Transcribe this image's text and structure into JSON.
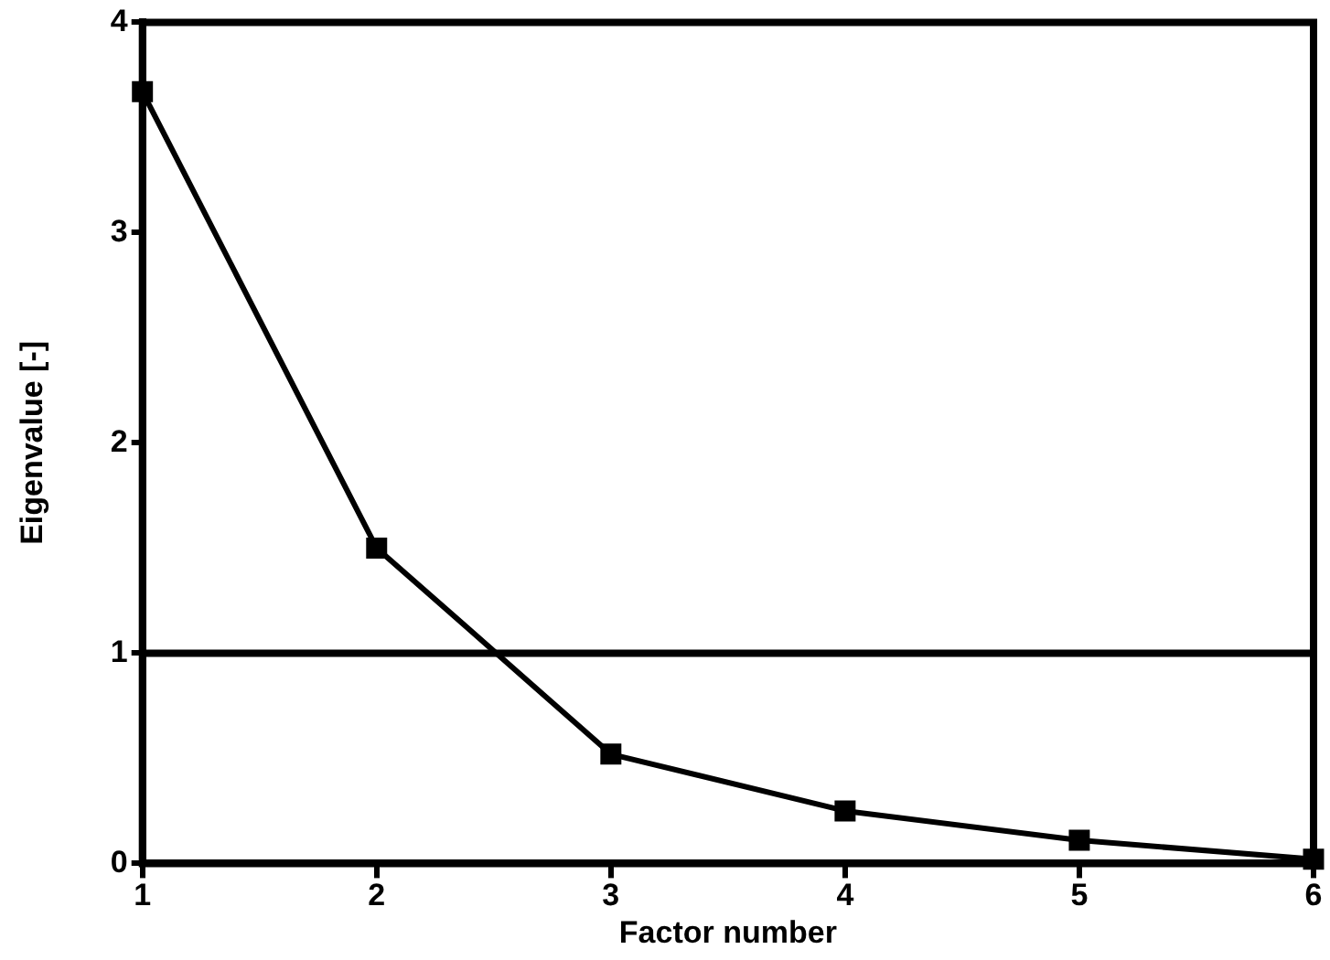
{
  "chart_data": {
    "type": "line",
    "xlabel": "Factor number",
    "ylabel": "Eigenvalue [-]",
    "x": [
      1,
      2,
      3,
      4,
      5,
      6
    ],
    "series": [
      {
        "color": "#000000",
        "values": [
          3.67,
          1.5,
          0.52,
          0.25,
          0.11,
          0.02
        ]
      }
    ],
    "xlim": [
      1,
      6
    ],
    "xticks": [
      1,
      2,
      3,
      4,
      5,
      6
    ],
    "ylim": [
      0,
      4
    ],
    "yticks": [
      0,
      1,
      2,
      3,
      4
    ],
    "ref_lines": [
      {
        "axis": "y",
        "value": 1,
        "color": "#000000"
      }
    ],
    "marker": "square",
    "line_style": "solid",
    "grid": false,
    "legend": false
  }
}
